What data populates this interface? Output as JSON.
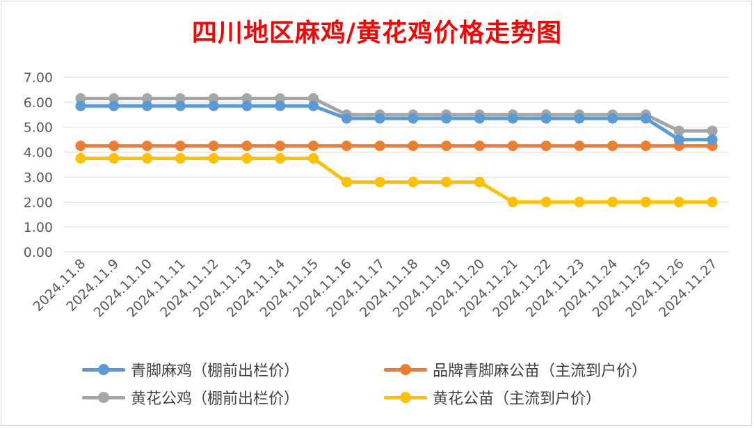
{
  "chart_data": {
    "type": "line",
    "title": "四川地区麻鸡/黄花鸡价格走势图",
    "xlabel": "",
    "ylabel": "",
    "ylim": [
      0,
      7
    ],
    "y_ticks": [
      "0.00",
      "1.00",
      "2.00",
      "3.00",
      "4.00",
      "5.00",
      "6.00",
      "7.00"
    ],
    "grid": true,
    "legend_position": "bottom",
    "categories": [
      "2024.11.8",
      "2024.11.9",
      "2024.11.10",
      "2024.11.11",
      "2024.11.12",
      "2024.11.13",
      "2024.11.14",
      "2024.11.15",
      "2024.11.16",
      "2024.11.17",
      "2024.11.18",
      "2024.11.19",
      "2024.11.20",
      "2024.11.21",
      "2024.11.22",
      "2024.11.23",
      "2024.11.24",
      "2024.11.25",
      "2024.11.26",
      "2024.11.27"
    ],
    "series": [
      {
        "name": "青脚麻鸡（棚前出栏价）",
        "color": "#5b9bd5",
        "values": [
          5.85,
          5.85,
          5.85,
          5.85,
          5.85,
          5.85,
          5.85,
          5.85,
          5.35,
          5.35,
          5.35,
          5.35,
          5.35,
          5.35,
          5.35,
          5.35,
          5.35,
          5.35,
          4.5,
          4.5
        ]
      },
      {
        "name": "品牌青脚麻公苗（主流到户价）",
        "color": "#ed7d31",
        "values": [
          4.25,
          4.25,
          4.25,
          4.25,
          4.25,
          4.25,
          4.25,
          4.25,
          4.25,
          4.25,
          4.25,
          4.25,
          4.25,
          4.25,
          4.25,
          4.25,
          4.25,
          4.25,
          4.25,
          4.25
        ]
      },
      {
        "name": "黄花公鸡（棚前出栏价）",
        "color": "#a5a5a5",
        "values": [
          6.15,
          6.15,
          6.15,
          6.15,
          6.15,
          6.15,
          6.15,
          6.15,
          5.5,
          5.5,
          5.5,
          5.5,
          5.5,
          5.5,
          5.5,
          5.5,
          5.5,
          5.5,
          4.85,
          4.85
        ]
      },
      {
        "name": "黄花公苗（主流到户价）",
        "color": "#ffc000",
        "values": [
          3.75,
          3.75,
          3.75,
          3.75,
          3.75,
          3.75,
          3.75,
          3.75,
          2.8,
          2.8,
          2.8,
          2.8,
          2.8,
          2.0,
          2.0,
          2.0,
          2.0,
          2.0,
          2.0,
          2.0
        ]
      }
    ]
  },
  "legend": [
    {
      "label": "青脚麻鸡（棚前出栏价）",
      "color": "#5b9bd5"
    },
    {
      "label": "品牌青脚麻公苗（主流到户价）",
      "color": "#ed7d31"
    },
    {
      "label": "黄花公鸡（棚前出栏价）",
      "color": "#a5a5a5"
    },
    {
      "label": "黄花公苗（主流到户价）",
      "color": "#ffc000"
    }
  ]
}
